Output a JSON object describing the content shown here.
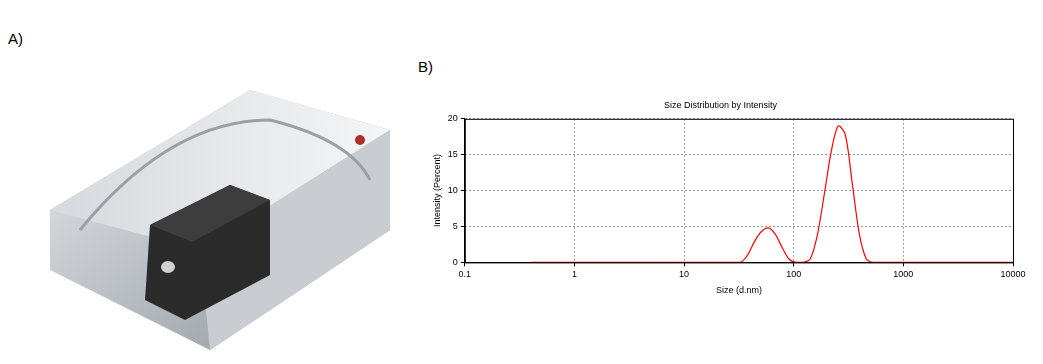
{
  "panel_labels": [
    "A)",
    "B)"
  ],
  "chart_data": {
    "type": "line",
    "title": "Size Distribution by Intensity",
    "x_label": "Size (d.nm)",
    "y_label": "Intensity (Percent)",
    "x": [
      0.4,
      28.21,
      32.67,
      37.84,
      43.82,
      50.75,
      58.77,
      68.06,
      78.82,
      91.28,
      105.7,
      122.4,
      141.8,
      164.2,
      190.1,
      220.2,
      255.0,
      295.3,
      342.0,
      396.1,
      458.7,
      531.2,
      10000
    ],
    "values": [
      0,
      0,
      0,
      1.0,
      2.9,
      4.3,
      4.8,
      3.9,
      2.0,
      0.4,
      0,
      0,
      0.5,
      3.8,
      9.5,
      15.5,
      19.0,
      17.8,
      11.0,
      4.0,
      0.5,
      0,
      0
    ],
    "color": "#ff0000",
    "log": "x",
    "xlim": [
      0.1,
      10000
    ],
    "xticks": [
      0.1,
      1,
      10,
      100,
      1000,
      10000
    ],
    "ylim": [
      0,
      20
    ],
    "yticks": [
      0,
      5,
      10,
      15,
      20
    ],
    "grid": true
  }
}
